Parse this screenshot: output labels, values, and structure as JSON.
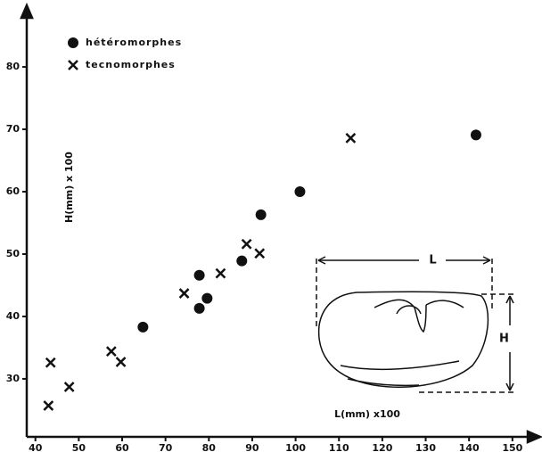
{
  "chart_data": {
    "type": "scatter",
    "xlabel": "L(mm) x100",
    "ylabel": "H(mm) x 100",
    "annotations": [
      "L",
      "H"
    ],
    "xlim": [
      38,
      156
    ],
    "ylim": [
      20.7,
      89.3
    ],
    "xticks": [
      40,
      50,
      60,
      70,
      80,
      90,
      100,
      110,
      120,
      130,
      140,
      150
    ],
    "yticks": [
      30,
      40,
      50,
      60,
      70,
      80
    ],
    "series": [
      {
        "name": "hétéromorphes",
        "marker": "circle",
        "color": "#111111",
        "x": [
          64.8,
          77.8,
          77.8,
          79.6,
          87.6,
          92,
          101,
          141.6
        ],
        "values": [
          38.3,
          46.6,
          41.3,
          42.9,
          48.9,
          56.3,
          60,
          69.1
        ]
      },
      {
        "name": "tecnomorphes",
        "marker": "cross",
        "color": "#111111",
        "x": [
          43,
          43.5,
          47.8,
          57.5,
          59.7,
          74.3,
          82.7,
          88.7,
          91.7,
          112.7
        ],
        "values": [
          25.7,
          32.6,
          28.7,
          34.4,
          32.7,
          43.7,
          46.9,
          51.6,
          50.1,
          68.6
        ]
      }
    ]
  }
}
